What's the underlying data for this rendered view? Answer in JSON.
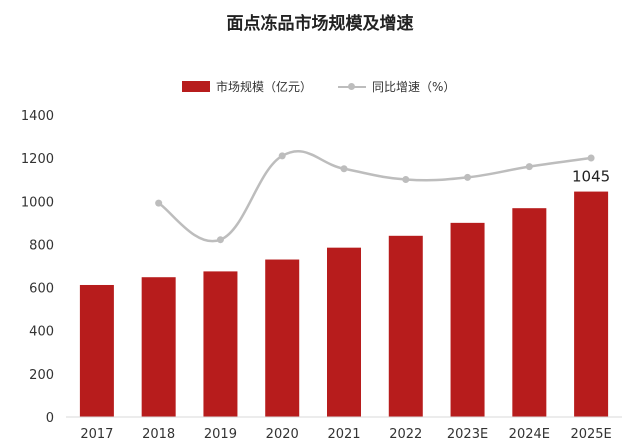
{
  "chart_data": {
    "type": "bar",
    "title": "面点冻品市场规模及增速",
    "categories": [
      "2017",
      "2018",
      "2019",
      "2020",
      "2021",
      "2022",
      "2023E",
      "2024E",
      "2025E"
    ],
    "series": [
      {
        "name": "市场规模（亿元）",
        "type": "bar",
        "color": "#b71c1c",
        "values": [
          612,
          648,
          675,
          730,
          785,
          840,
          900,
          968,
          1045
        ]
      },
      {
        "name": "同比增速（%）",
        "type": "line",
        "color": "#bdbdbd",
        "values": [
          null,
          5.9,
          4.2,
          8.1,
          7.5,
          7.0,
          7.1,
          7.6,
          8.0
        ]
      }
    ],
    "data_labels": [
      {
        "category": "2025E",
        "text": "1045"
      }
    ],
    "yticks": [
      0,
      200,
      400,
      600,
      800,
      1000,
      1200,
      1400
    ],
    "ylim": [
      0,
      1400
    ],
    "xlabel": "",
    "ylabel": "",
    "legend_position": "top-center",
    "grid": false
  }
}
